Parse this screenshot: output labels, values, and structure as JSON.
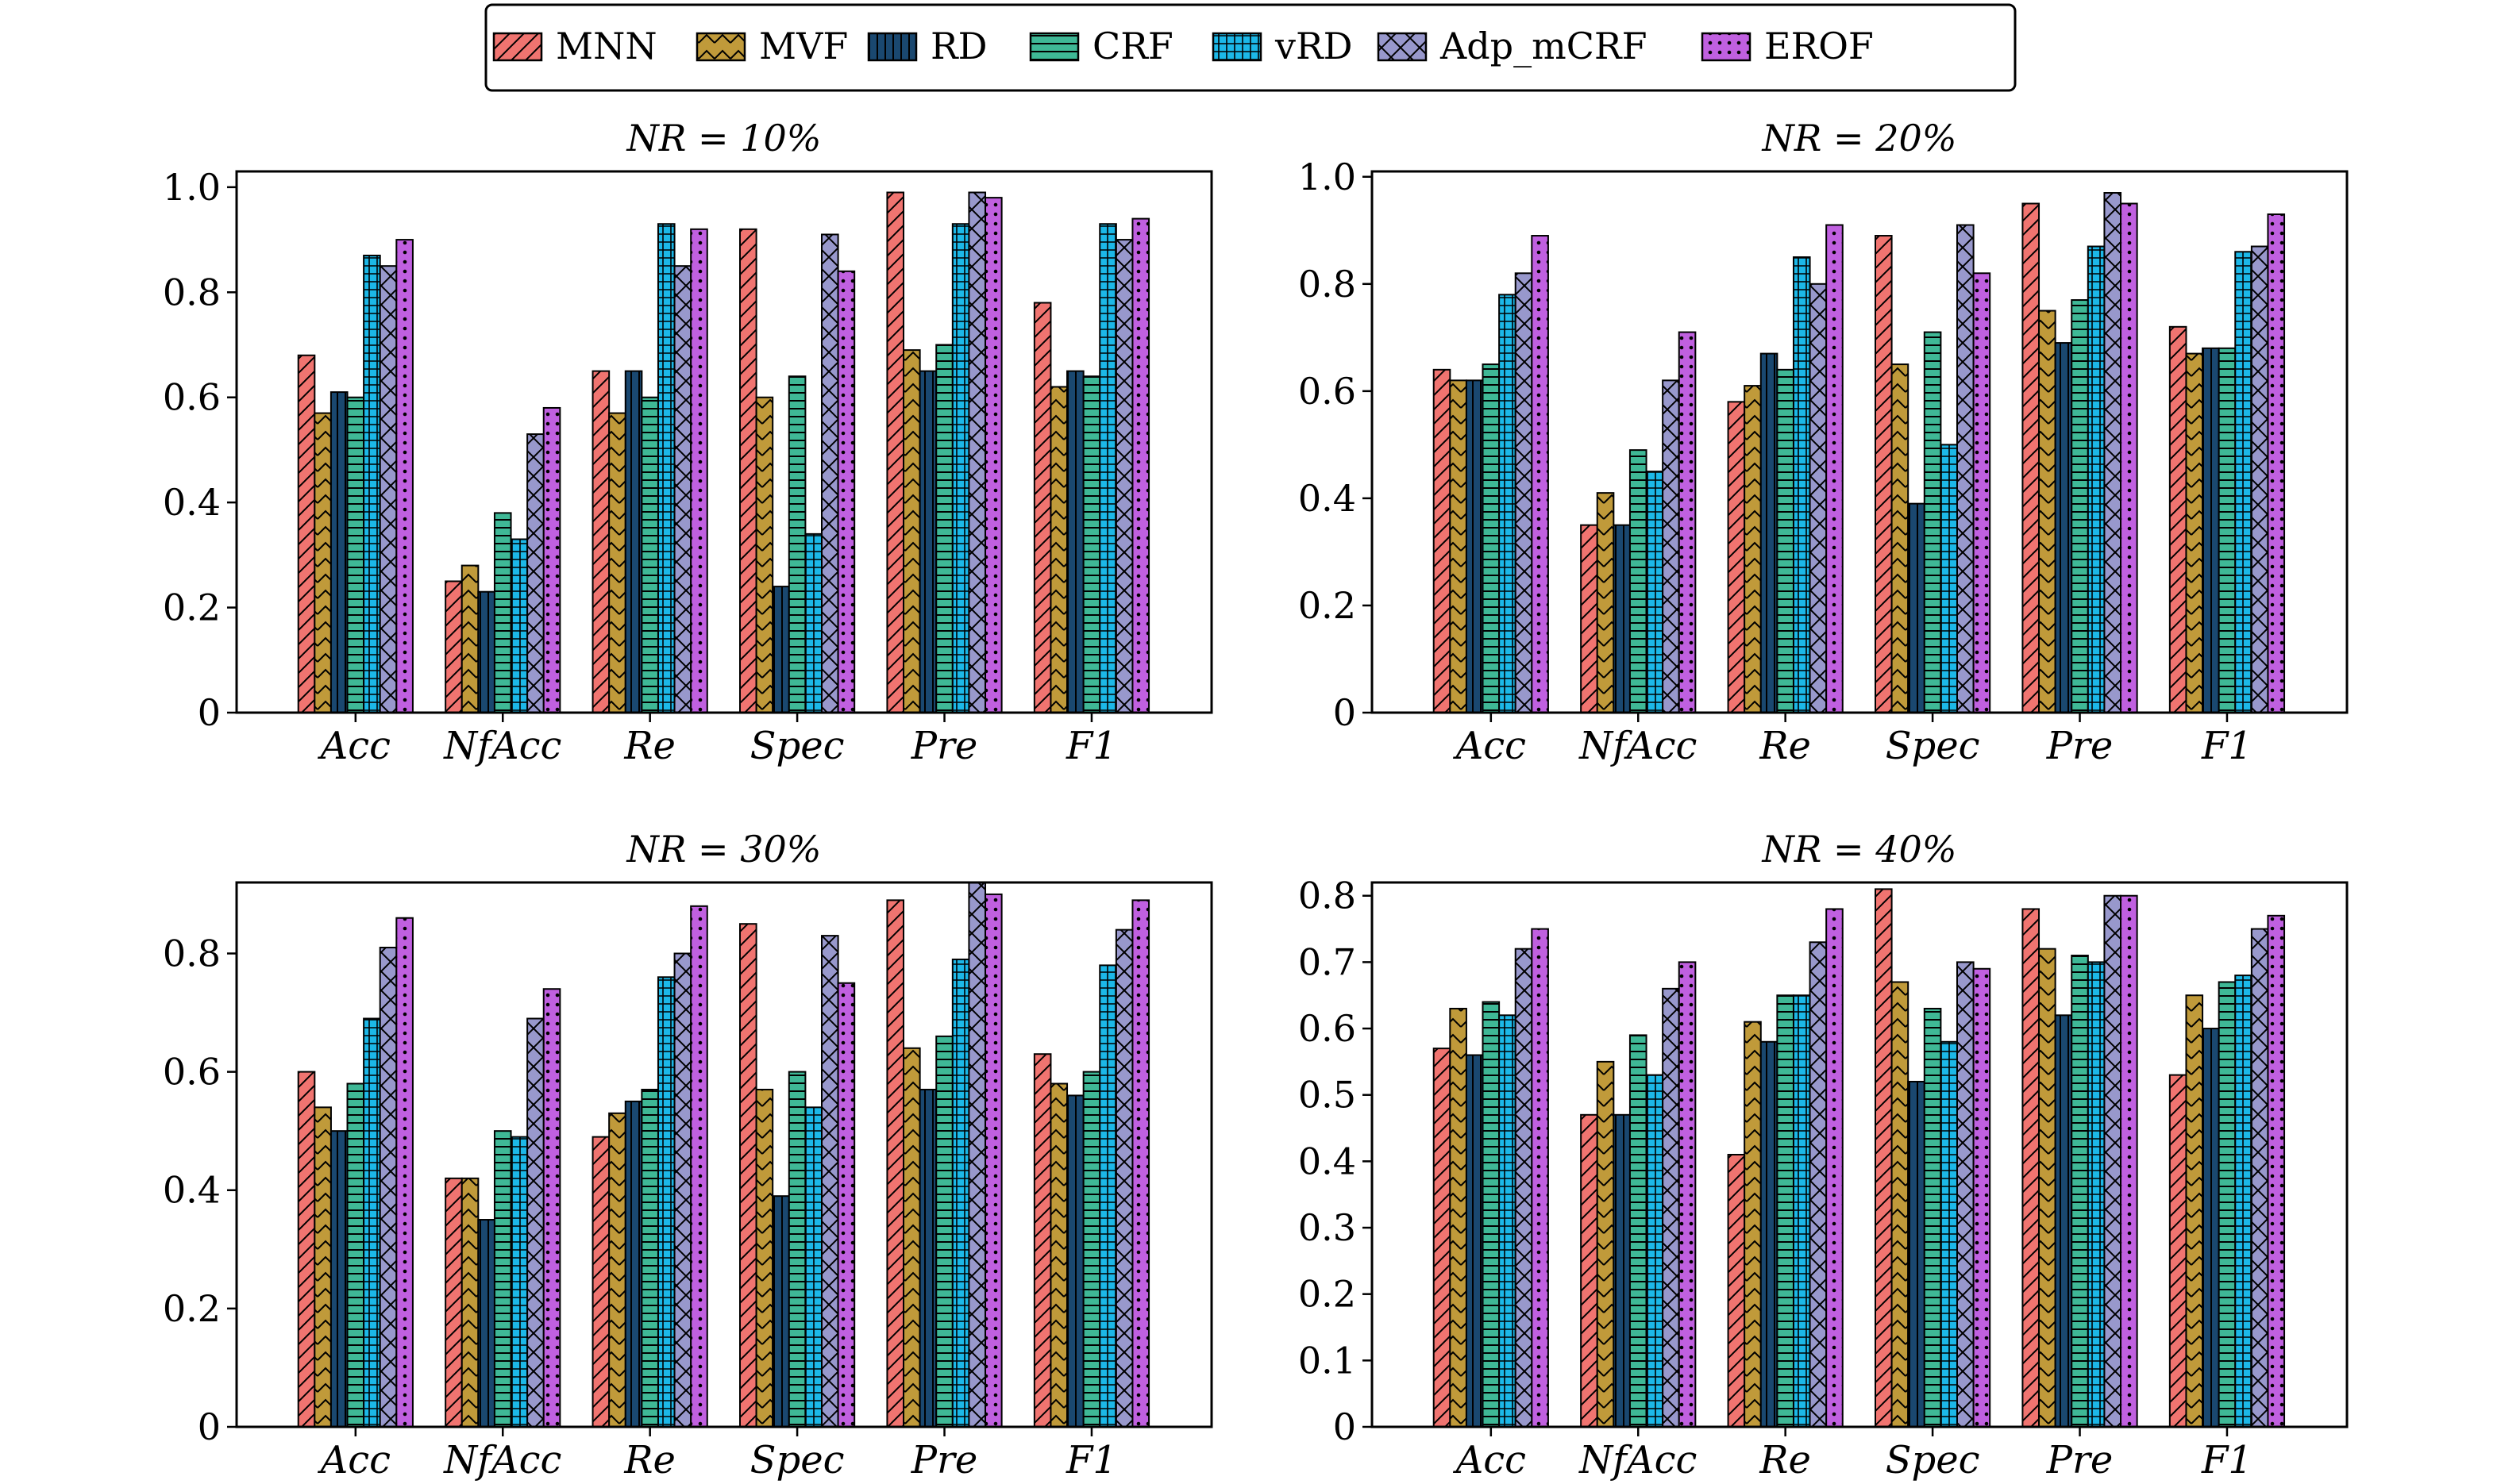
{
  "legend": {
    "location": "top-center",
    "entries": [
      {
        "name": "MNN",
        "color": "#f07470",
        "pattern": "diag"
      },
      {
        "name": "MVF",
        "color": "#c09a3a",
        "pattern": "chevron"
      },
      {
        "name": "RD",
        "color": "#1a4870",
        "pattern": "vlines"
      },
      {
        "name": "CRF",
        "color": "#3fb896",
        "pattern": "hlines"
      },
      {
        "name": "vRD",
        "color": "#1cb8e8",
        "pattern": "grid"
      },
      {
        "name": "Adp_mCRF",
        "color": "#9898cc",
        "pattern": "cross"
      },
      {
        "name": "EROF",
        "color": "#c060e0",
        "pattern": "dots"
      }
    ]
  },
  "chart_data": [
    {
      "type": "bar",
      "title": "NR = 10%",
      "categories": [
        "Acc",
        "NfAcc",
        "Re",
        "Spec",
        "Pre",
        "F1"
      ],
      "ylim": [
        0,
        1.03
      ],
      "yticks": [
        0,
        0.2,
        0.4,
        0.6,
        0.8,
        1.0
      ],
      "ytick_labels": [
        "0",
        "0.2",
        "0.4",
        "0.6",
        "0.8",
        "1.0"
      ],
      "grid": false,
      "series": [
        {
          "name": "MNN",
          "values": [
            0.68,
            0.25,
            0.65,
            0.92,
            0.99,
            0.78
          ]
        },
        {
          "name": "MVF",
          "values": [
            0.57,
            0.28,
            0.57,
            0.6,
            0.69,
            0.62
          ]
        },
        {
          "name": "RD",
          "values": [
            0.61,
            0.23,
            0.65,
            0.24,
            0.65,
            0.65
          ]
        },
        {
          "name": "CRF",
          "values": [
            0.6,
            0.38,
            0.6,
            0.64,
            0.7,
            0.64
          ]
        },
        {
          "name": "vRD",
          "values": [
            0.87,
            0.33,
            0.93,
            0.34,
            0.93,
            0.93
          ]
        },
        {
          "name": "Adp_mCRF",
          "values": [
            0.85,
            0.53,
            0.85,
            0.91,
            0.99,
            0.9
          ]
        },
        {
          "name": "EROF",
          "values": [
            0.9,
            0.58,
            0.92,
            0.84,
            0.98,
            0.94
          ]
        }
      ]
    },
    {
      "type": "bar",
      "title": "NR = 20%",
      "categories": [
        "Acc",
        "NfAcc",
        "Re",
        "Spec",
        "Pre",
        "F1"
      ],
      "ylim": [
        0,
        1.01
      ],
      "yticks": [
        0,
        0.2,
        0.4,
        0.6,
        0.8,
        1.0
      ],
      "ytick_labels": [
        "0",
        "0.2",
        "0.4",
        "0.6",
        "0.8",
        "1.0"
      ],
      "grid": false,
      "series": [
        {
          "name": "MNN",
          "values": [
            0.64,
            0.35,
            0.58,
            0.89,
            0.95,
            0.72
          ]
        },
        {
          "name": "MVF",
          "values": [
            0.62,
            0.41,
            0.61,
            0.65,
            0.75,
            0.67
          ]
        },
        {
          "name": "RD",
          "values": [
            0.62,
            0.35,
            0.67,
            0.39,
            0.69,
            0.68
          ]
        },
        {
          "name": "CRF",
          "values": [
            0.65,
            0.49,
            0.64,
            0.71,
            0.77,
            0.68
          ]
        },
        {
          "name": "vRD",
          "values": [
            0.78,
            0.45,
            0.85,
            0.5,
            0.87,
            0.86
          ]
        },
        {
          "name": "Adp_mCRF",
          "values": [
            0.82,
            0.62,
            0.8,
            0.91,
            0.97,
            0.87
          ]
        },
        {
          "name": "EROF",
          "values": [
            0.89,
            0.71,
            0.91,
            0.82,
            0.95,
            0.93
          ]
        }
      ]
    },
    {
      "type": "bar",
      "title": "NR = 30%",
      "categories": [
        "Acc",
        "NfAcc",
        "Re",
        "Spec",
        "Pre",
        "F1"
      ],
      "ylim": [
        0,
        0.92
      ],
      "yticks": [
        0,
        0.2,
        0.4,
        0.6,
        0.8
      ],
      "ytick_labels": [
        "0",
        "0.2",
        "0.4",
        "0.6",
        "0.8"
      ],
      "grid": false,
      "series": [
        {
          "name": "MNN",
          "values": [
            0.6,
            0.42,
            0.49,
            0.85,
            0.89,
            0.63
          ]
        },
        {
          "name": "MVF",
          "values": [
            0.54,
            0.42,
            0.53,
            0.57,
            0.64,
            0.58
          ]
        },
        {
          "name": "RD",
          "values": [
            0.5,
            0.35,
            0.55,
            0.39,
            0.57,
            0.56
          ]
        },
        {
          "name": "CRF",
          "values": [
            0.58,
            0.5,
            0.57,
            0.6,
            0.66,
            0.6
          ]
        },
        {
          "name": "vRD",
          "values": [
            0.69,
            0.49,
            0.76,
            0.54,
            0.79,
            0.78
          ]
        },
        {
          "name": "Adp_mCRF",
          "values": [
            0.81,
            0.69,
            0.8,
            0.83,
            0.92,
            0.84
          ]
        },
        {
          "name": "EROF",
          "values": [
            0.86,
            0.74,
            0.88,
            0.75,
            0.9,
            0.89
          ]
        }
      ]
    },
    {
      "type": "bar",
      "title": "NR = 40%",
      "categories": [
        "Acc",
        "NfAcc",
        "Re",
        "Spec",
        "Pre",
        "F1"
      ],
      "ylim": [
        0,
        0.82
      ],
      "yticks": [
        0,
        0.1,
        0.2,
        0.3,
        0.4,
        0.5,
        0.6,
        0.7,
        0.8
      ],
      "ytick_labels": [
        "0",
        "0.1",
        "0.2",
        "0.3",
        "0.4",
        "0.5",
        "0.6",
        "0.7",
        "0.8"
      ],
      "grid": false,
      "series": [
        {
          "name": "MNN",
          "values": [
            0.57,
            0.47,
            0.41,
            0.81,
            0.78,
            0.53
          ]
        },
        {
          "name": "MVF",
          "values": [
            0.63,
            0.55,
            0.61,
            0.67,
            0.72,
            0.65
          ]
        },
        {
          "name": "RD",
          "values": [
            0.56,
            0.47,
            0.58,
            0.52,
            0.62,
            0.6
          ]
        },
        {
          "name": "CRF",
          "values": [
            0.64,
            0.59,
            0.65,
            0.63,
            0.71,
            0.67
          ]
        },
        {
          "name": "vRD",
          "values": [
            0.62,
            0.53,
            0.65,
            0.58,
            0.7,
            0.68
          ]
        },
        {
          "name": "Adp_mCRF",
          "values": [
            0.72,
            0.66,
            0.73,
            0.7,
            0.8,
            0.75
          ]
        },
        {
          "name": "EROF",
          "values": [
            0.75,
            0.7,
            0.78,
            0.69,
            0.8,
            0.77
          ]
        }
      ]
    }
  ]
}
